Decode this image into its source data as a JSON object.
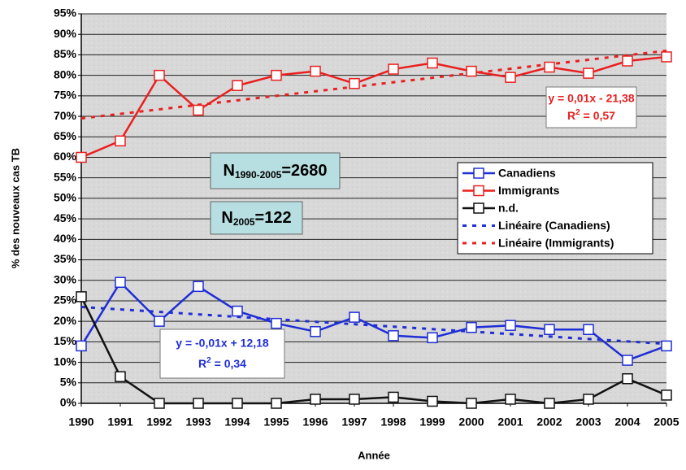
{
  "chart_data": {
    "type": "line",
    "y_label": "% des nouveaux cas TB",
    "x_label": "Année",
    "xlim": [
      1990,
      2005
    ],
    "xticks": [
      1990,
      1991,
      1992,
      1993,
      1994,
      1995,
      1996,
      1997,
      1998,
      1999,
      2000,
      2001,
      2002,
      2003,
      2004,
      2005
    ],
    "ylim": [
      0,
      95
    ],
    "yticks": [
      {
        "value": 0,
        "label": "0%"
      },
      {
        "value": 5,
        "label": "5%"
      },
      {
        "value": 10,
        "label": "10%"
      },
      {
        "value": 15,
        "label": "15%"
      },
      {
        "value": 20,
        "label": "20%"
      },
      {
        "value": 25,
        "label": "25%"
      },
      {
        "value": 30,
        "label": "30%"
      },
      {
        "value": 35,
        "label": "35%"
      },
      {
        "value": 40,
        "label": "40%"
      },
      {
        "value": 45,
        "label": "45%"
      },
      {
        "value": 50,
        "label": "50%"
      },
      {
        "value": 55,
        "label": "55%"
      },
      {
        "value": 60,
        "label": "60%"
      },
      {
        "value": 65,
        "label": "65%"
      },
      {
        "value": 70,
        "label": "70%"
      },
      {
        "value": 75,
        "label": "75%"
      },
      {
        "value": 80,
        "label": "80%"
      },
      {
        "value": 85,
        "label": "85%"
      },
      {
        "value": 90,
        "label": "90%"
      },
      {
        "value": 95,
        "label": "95%"
      }
    ],
    "grid": true,
    "x": [
      1990,
      1991,
      1992,
      1993,
      1994,
      1995,
      1996,
      1997,
      1998,
      1999,
      2000,
      2001,
      2002,
      2003,
      2004,
      2005
    ],
    "series": [
      {
        "name": "Canadiens",
        "color": "#1f2ed6",
        "values": [
          14,
          29.5,
          20,
          28.5,
          22.5,
          19.5,
          17.5,
          21,
          16.5,
          16,
          18.5,
          19,
          18,
          18,
          10.5,
          14
        ]
      },
      {
        "name": "Immigrants",
        "color": "#ea1f1f",
        "values": [
          60,
          64,
          80,
          71.5,
          77.5,
          80,
          81,
          78,
          81.5,
          83,
          81,
          79.5,
          82,
          80.5,
          83.5,
          84.5
        ]
      },
      {
        "name": "n.d.",
        "color": "#111111",
        "values": [
          26,
          6.5,
          0,
          0,
          0,
          0,
          1,
          1,
          1.5,
          0.5,
          0,
          1,
          0,
          1,
          6,
          2
        ]
      }
    ],
    "trends": [
      {
        "name": "Linéaire (Canadiens)",
        "color": "#1f2ed6",
        "x": [
          1990,
          2005
        ],
        "values": [
          23.5,
          14.5
        ]
      },
      {
        "name": "Linéaire (Immigrants)",
        "color": "#ea1f1f",
        "x": [
          1990,
          2005
        ],
        "values": [
          69.5,
          86
        ]
      }
    ],
    "annotations": [
      {
        "color": "#ea1f1f",
        "equation": "y = 0,01x - 21,38",
        "r2": {
          "text": "R",
          "sup": "2",
          "rest": " = 0,57"
        }
      },
      {
        "color": "#1f2ed6",
        "equation": "y = -0,01x + 12,18",
        "r2": {
          "text": "R",
          "sup": "2",
          "rest": " = 0,34"
        }
      }
    ],
    "counts": [
      {
        "text": "N",
        "sub": "1990-2005",
        "rest": "=2680"
      },
      {
        "text": "N",
        "sub": "2005",
        "rest": "=122"
      }
    ]
  }
}
